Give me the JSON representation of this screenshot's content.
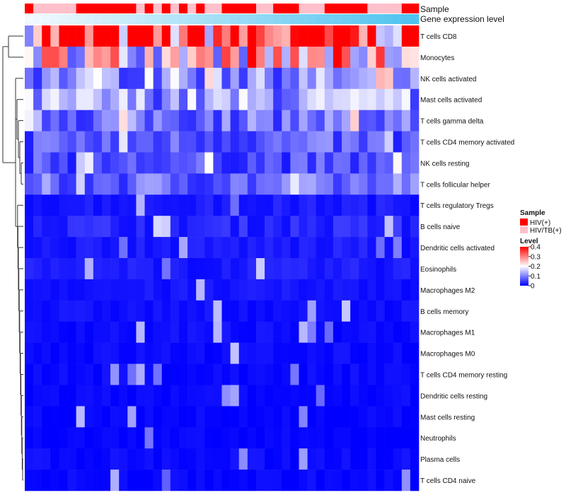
{
  "chart_data": {
    "type": "heatmap",
    "title": "",
    "annotation_tracks": [
      "Sample",
      "Gene expression level"
    ],
    "rows": [
      "T cells CD8",
      "Monocytes",
      "NK cells activated",
      "Mast cells activated",
      "T cells gamma delta",
      "T cells CD4 memory activated",
      "NK cells resting",
      "T cells follicular helper",
      "T cells regulatory  Tregs",
      "B cells naive",
      "Dendritic cells activated",
      "Eosinophils",
      "Macrophages M2",
      "B cells memory",
      "Macrophages M1",
      "Macrophages M0",
      "T cells CD4 memory resting",
      "Dendritic cells resting",
      "Mast cells resting",
      "Neutrophils",
      "Plasma cells",
      "T cells CD4 naive"
    ],
    "n_columns": 46,
    "sample_groups": [
      {
        "label": "HIV(+)",
        "color": "#FF0000",
        "columns": [
          0,
          6,
          7,
          8,
          9,
          10,
          11,
          12,
          14,
          16,
          18,
          20,
          23,
          24,
          25,
          26,
          29,
          30,
          31,
          35,
          36,
          37,
          38,
          39,
          44,
          45
        ]
      },
      {
        "label": "HIV/TB(+)",
        "color": "#FFC0CB",
        "columns": [
          1,
          2,
          3,
          4,
          5,
          13,
          15,
          17,
          19,
          21,
          22,
          27,
          28,
          32,
          33,
          34,
          40,
          41,
          42,
          43
        ]
      }
    ],
    "gene_expression_gradient": [
      "#F2FAFE",
      "#4FC3F0"
    ],
    "row_mean_levels": [
      0.34,
      0.22,
      0.11,
      0.12,
      0.09,
      0.07,
      0.06,
      0.08,
      0.02,
      0.03,
      0.02,
      0.02,
      0.015,
      0.012,
      0.01,
      0.008,
      0.006,
      0.004,
      0.003,
      0.002,
      0.008,
      0.005
    ],
    "color_scale": {
      "title": "Level",
      "min": 0,
      "max": 0.4,
      "ticks": [
        0.4,
        0.3,
        0.2,
        0.1,
        0
      ],
      "low": "#0000FF",
      "mid": "#FFFFFF",
      "high": "#FF0000",
      "mid_value": 0.2
    },
    "legend_position": "right"
  },
  "legend": {
    "sample_title": "Sample",
    "level_title": "Level"
  }
}
